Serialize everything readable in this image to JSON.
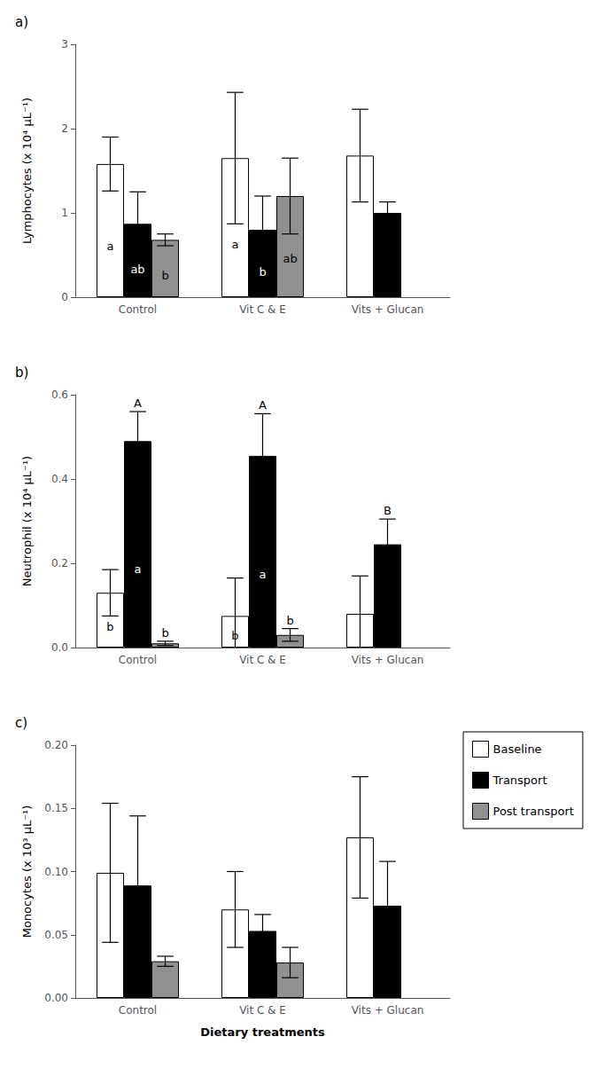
{
  "chart_data": [
    {
      "type": "bar",
      "title": "a)",
      "ylabel": "Lymphocytes (x 10⁴ μL⁻¹)",
      "categories": [
        "Control",
        "Vit C & E",
        "Vits + Glucan"
      ],
      "series": [
        {
          "name": "Baseline",
          "color": "#ffffff",
          "values": [
            1.58,
            1.65,
            1.68
          ],
          "errors": [
            0.32,
            0.78,
            0.55
          ]
        },
        {
          "name": "Transport",
          "color": "#000000",
          "values": [
            0.87,
            0.8,
            1.0
          ],
          "errors": [
            0.38,
            0.4,
            0.13
          ]
        },
        {
          "name": "Post transport",
          "color": "#909090",
          "values": [
            0.68,
            1.2,
            null
          ],
          "errors": [
            0.07,
            0.45,
            null
          ]
        }
      ],
      "ylim": [
        0,
        3
      ],
      "yticks": [
        0,
        1,
        2,
        3
      ],
      "grid": false,
      "annotations": [
        {
          "text": "a",
          "series": "Baseline",
          "category": "Control",
          "position": "inside",
          "color": "black"
        },
        {
          "text": "a",
          "series": "Baseline",
          "category": "Vit C & E",
          "position": "inside",
          "color": "black"
        },
        {
          "text": "ab",
          "series": "Transport",
          "category": "Control",
          "position": "inside",
          "color": "white"
        },
        {
          "text": "b",
          "series": "Transport",
          "category": "Vit C & E",
          "position": "inside",
          "color": "white"
        },
        {
          "text": "b",
          "series": "Post transport",
          "category": "Control",
          "position": "inside",
          "color": "black"
        },
        {
          "text": "ab",
          "series": "Post transport",
          "category": "Vit C & E",
          "position": "inside",
          "color": "black"
        }
      ]
    },
    {
      "type": "bar",
      "title": "b)",
      "ylabel": "Neutrophil (x 10⁴ μL⁻¹)",
      "categories": [
        "Control",
        "Vit C & E",
        "Vits + Glucan"
      ],
      "series": [
        {
          "name": "Baseline",
          "color": "#ffffff",
          "values": [
            0.13,
            0.075,
            0.08
          ],
          "errors": [
            0.055,
            0.09,
            0.09
          ]
        },
        {
          "name": "Transport",
          "color": "#000000",
          "values": [
            0.49,
            0.455,
            0.245
          ],
          "errors": [
            0.07,
            0.1,
            0.06
          ]
        },
        {
          "name": "Post transport",
          "color": "#909090",
          "values": [
            0.01,
            0.03,
            null
          ],
          "errors": [
            0.005,
            0.015,
            null
          ]
        }
      ],
      "ylim": [
        0,
        0.6
      ],
      "yticks": [
        {
          "value": 0,
          "label": "0.0"
        },
        0.2,
        0.4,
        0.6
      ],
      "grid": false,
      "annotations": [
        {
          "text": "b",
          "series": "Baseline",
          "category": "Control",
          "position": "inside",
          "color": "black"
        },
        {
          "text": "b",
          "series": "Baseline",
          "category": "Vit C & E",
          "position": "inside",
          "color": "black"
        },
        {
          "text": "a",
          "series": "Transport",
          "category": "Control",
          "position": "inside",
          "color": "white"
        },
        {
          "text": "a",
          "series": "Transport",
          "category": "Vit C & E",
          "position": "inside",
          "color": "white"
        },
        {
          "text": "A",
          "series": "Transport",
          "category": "Control",
          "position": "above",
          "color": "black"
        },
        {
          "text": "A",
          "series": "Transport",
          "category": "Vit C & E",
          "position": "above",
          "color": "black"
        },
        {
          "text": "B",
          "series": "Transport",
          "category": "Vits + Glucan",
          "position": "above",
          "color": "black"
        },
        {
          "text": "b",
          "series": "Post transport",
          "category": "Control",
          "position": "above",
          "color": "black"
        },
        {
          "text": "b",
          "series": "Post transport",
          "category": "Vit C & E",
          "position": "above",
          "color": "black"
        }
      ]
    },
    {
      "type": "bar",
      "title": "c)",
      "ylabel": "Monocytes (x 10³ μL⁻¹)",
      "xlabel": "Dietary treatments",
      "categories": [
        "Control",
        "Vit C & E",
        "Vits + Glucan"
      ],
      "series": [
        {
          "name": "Baseline",
          "color": "#ffffff",
          "values": [
            0.099,
            0.07,
            0.127
          ],
          "errors": [
            0.055,
            0.03,
            0.048
          ]
        },
        {
          "name": "Transport",
          "color": "#000000",
          "values": [
            0.089,
            0.053,
            0.073
          ],
          "errors": [
            0.055,
            0.013,
            0.035
          ]
        },
        {
          "name": "Post transport",
          "color": "#909090",
          "values": [
            0.029,
            0.028,
            null
          ],
          "errors": [
            0.004,
            0.012,
            null
          ]
        }
      ],
      "ylim": [
        0,
        0.2
      ],
      "yticks": [
        {
          "value": 0,
          "label": "0.00"
        },
        0.05,
        {
          "value": 0.1,
          "label": "0.10"
        },
        0.15,
        {
          "value": 0.2,
          "label": "0.20"
        }
      ],
      "grid": false,
      "legend": "right"
    }
  ]
}
